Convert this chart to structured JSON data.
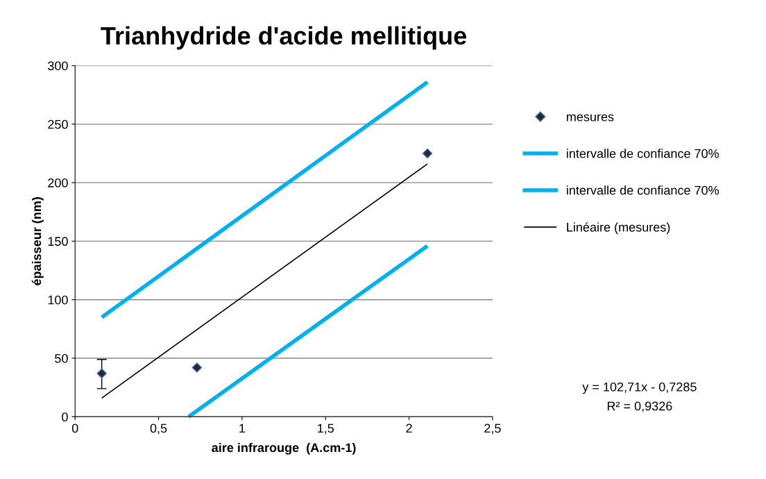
{
  "chart_data": {
    "type": "scatter",
    "title": "Trianhydride d'acide mellitique",
    "xlabel": "aire infrarouge  (A.cm-1)",
    "ylabel": "épaisseur (nm)",
    "xlim": [
      0,
      2.5
    ],
    "ylim": [
      0,
      300
    ],
    "xticks": [
      0,
      {
        "value": 0.5,
        "label": "0,5"
      },
      1,
      {
        "value": 1.5,
        "label": "1,5"
      },
      2,
      {
        "value": 2.5,
        "label": "2,5"
      }
    ],
    "yticks": [
      0,
      50,
      100,
      150,
      200,
      250,
      300
    ],
    "grid": "y",
    "legend": "right",
    "series": [
      {
        "name": "mesures",
        "marker": "diamond",
        "color": "#1f2a3a",
        "x": [
          0.16,
          0.73,
          2.11
        ],
        "values": [
          37,
          42,
          225
        ],
        "errors": [
          [
            24,
            49
          ],
          null,
          null
        ]
      },
      {
        "name": "intervalle de confiance 70%",
        "type": "line",
        "color": "#00b0f0",
        "x": [
          0.16,
          2.11
        ],
        "values": [
          85,
          286
        ],
        "marker": "none"
      },
      {
        "name": "intervalle de confiance 70%",
        "type": "line",
        "color": "#00b0f0",
        "x": [
          0.68,
          2.11
        ],
        "values": [
          0,
          146
        ],
        "marker": "none"
      },
      {
        "name": "Linéaire (mesures)",
        "type": "line",
        "color": "#000000",
        "x": [
          0.16,
          2.11
        ],
        "values": [
          16,
          216
        ],
        "marker": "none"
      }
    ],
    "annotations": [
      "y = 102,71x - 0,7285",
      "R² = 0,9326"
    ]
  }
}
